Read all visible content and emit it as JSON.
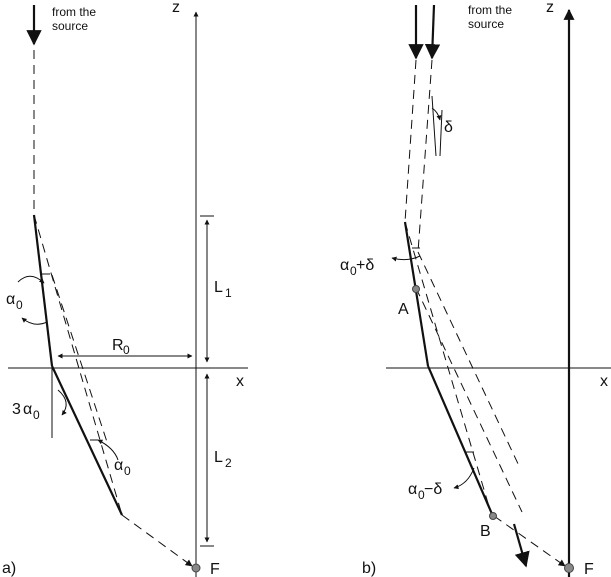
{
  "panel_a": {
    "label": "a)",
    "source_text": [
      "from the",
      "source"
    ],
    "axis_z": "z",
    "axis_x": "x",
    "length_top": "L",
    "length_top_sub": "1",
    "length_bottom": "L",
    "length_bottom_sub": "2",
    "radius": "R",
    "radius_sub": "0",
    "angle_upper": "α",
    "angle_upper_sub": "0",
    "angle_mid_prefix": "3",
    "angle_mid": "α",
    "angle_mid_sub": "0",
    "angle_lower": "α",
    "angle_lower_sub": "0",
    "focus": "F"
  },
  "panel_b": {
    "label": "b)",
    "source_text": [
      "from the",
      "source"
    ],
    "axis_z": "z",
    "axis_x": "x",
    "delta": "δ",
    "angle_upper": "α",
    "angle_upper_sub": "0",
    "angle_upper_suffix": "+δ",
    "angle_lower": "α",
    "angle_lower_sub": "0",
    "angle_lower_suffix": "−δ",
    "point_a": "A",
    "point_b": "B",
    "focus": "F"
  }
}
